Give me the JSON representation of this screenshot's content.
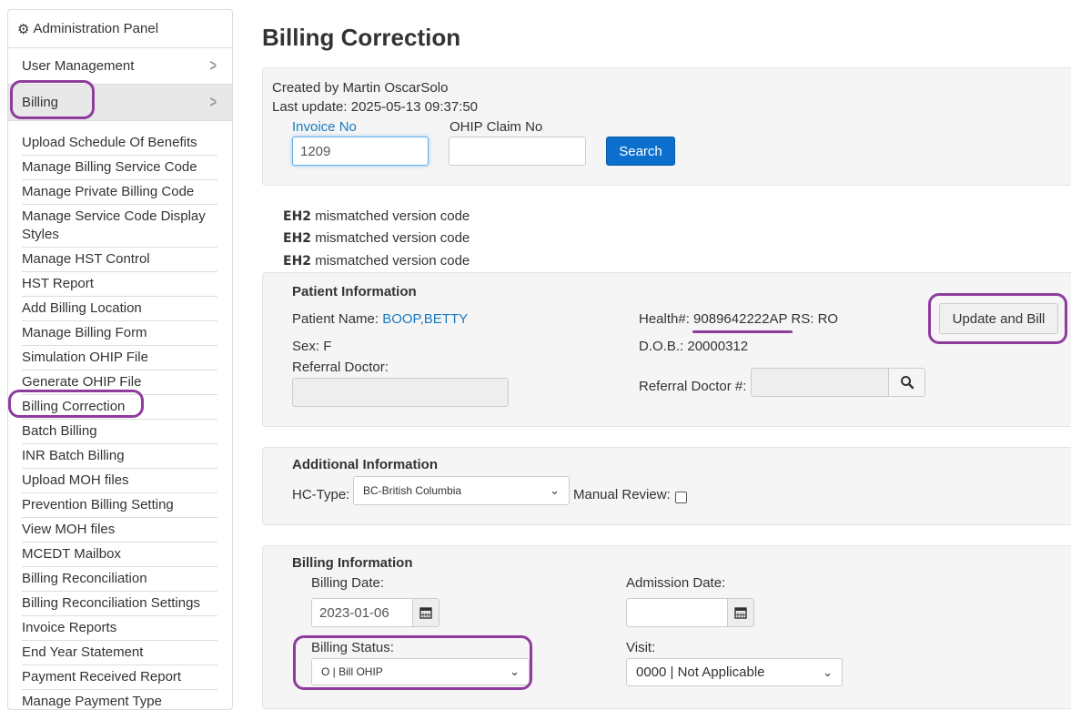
{
  "sidebar": {
    "header": "Administration Panel",
    "top_items": [
      {
        "label": "User Management"
      },
      {
        "label": "Billing"
      }
    ],
    "items": [
      "Upload Schedule Of Benefits",
      "Manage Billing Service Code",
      "Manage Private Billing Code",
      "Manage Service Code Display Styles",
      "Manage HST Control",
      "HST Report",
      "Add Billing Location",
      "Manage Billing Form",
      "Simulation OHIP File",
      "Generate OHIP File",
      "Billing Correction",
      "Batch Billing",
      "INR Batch Billing",
      "Upload MOH files",
      "Prevention Billing Setting",
      "View MOH files",
      "MCEDT Mailbox",
      "Billing Reconciliation",
      "Billing Reconciliation Settings",
      "Invoice Reports",
      "End Year Statement",
      "Payment Received Report",
      "Manage Payment Type"
    ]
  },
  "page": {
    "title": "Billing Correction",
    "created_by": "Created by Martin OscarSolo",
    "last_update": "Last update: 2025-05-13 09:37:50",
    "invoice_label": "Invoice No",
    "invoice_value": "1209",
    "ohip_label": "OHIP Claim No",
    "ohip_value": "",
    "search_label": "Search"
  },
  "errors": [
    {
      "code": "EH2",
      "message": "mismatched version code"
    },
    {
      "code": "EH2",
      "message": "mismatched version code"
    },
    {
      "code": "EH2",
      "message": "mismatched version code"
    }
  ],
  "patient": {
    "section_title": "Patient Information",
    "name_label": "Patient Name:",
    "name_value": "BOOP,BETTY",
    "health_label": "Health#:",
    "health_value": "9089642222AP",
    "rs_label": "RS:",
    "rs_value": "RO",
    "update_bill_label": "Update and Bill",
    "sex_label": "Sex:",
    "sex_value": "F",
    "dob_label": "D.O.B.:",
    "dob_value": "20000312",
    "referral_doctor_label": "Referral Doctor:",
    "referral_doctor_num_label": "Referral Doctor #:"
  },
  "additional": {
    "section_title": "Additional Information",
    "hc_type_label": "HC-Type:",
    "hc_type_value": "BC-British Columbia",
    "manual_review_label": "Manual Review:"
  },
  "billing": {
    "section_title": "Billing Information",
    "billing_date_label": "Billing Date:",
    "billing_date_value": "2023-01-06",
    "admission_date_label": "Admission Date:",
    "admission_date_value": "",
    "billing_status_label": "Billing Status:",
    "billing_status_value": "O | Bill OHIP",
    "visit_label": "Visit:",
    "visit_value": "0000 | Not Applicable"
  },
  "colors": {
    "annotation": "#8e3c9c",
    "link": "#1a7bbf",
    "primary_button": "#0c6fcd"
  }
}
